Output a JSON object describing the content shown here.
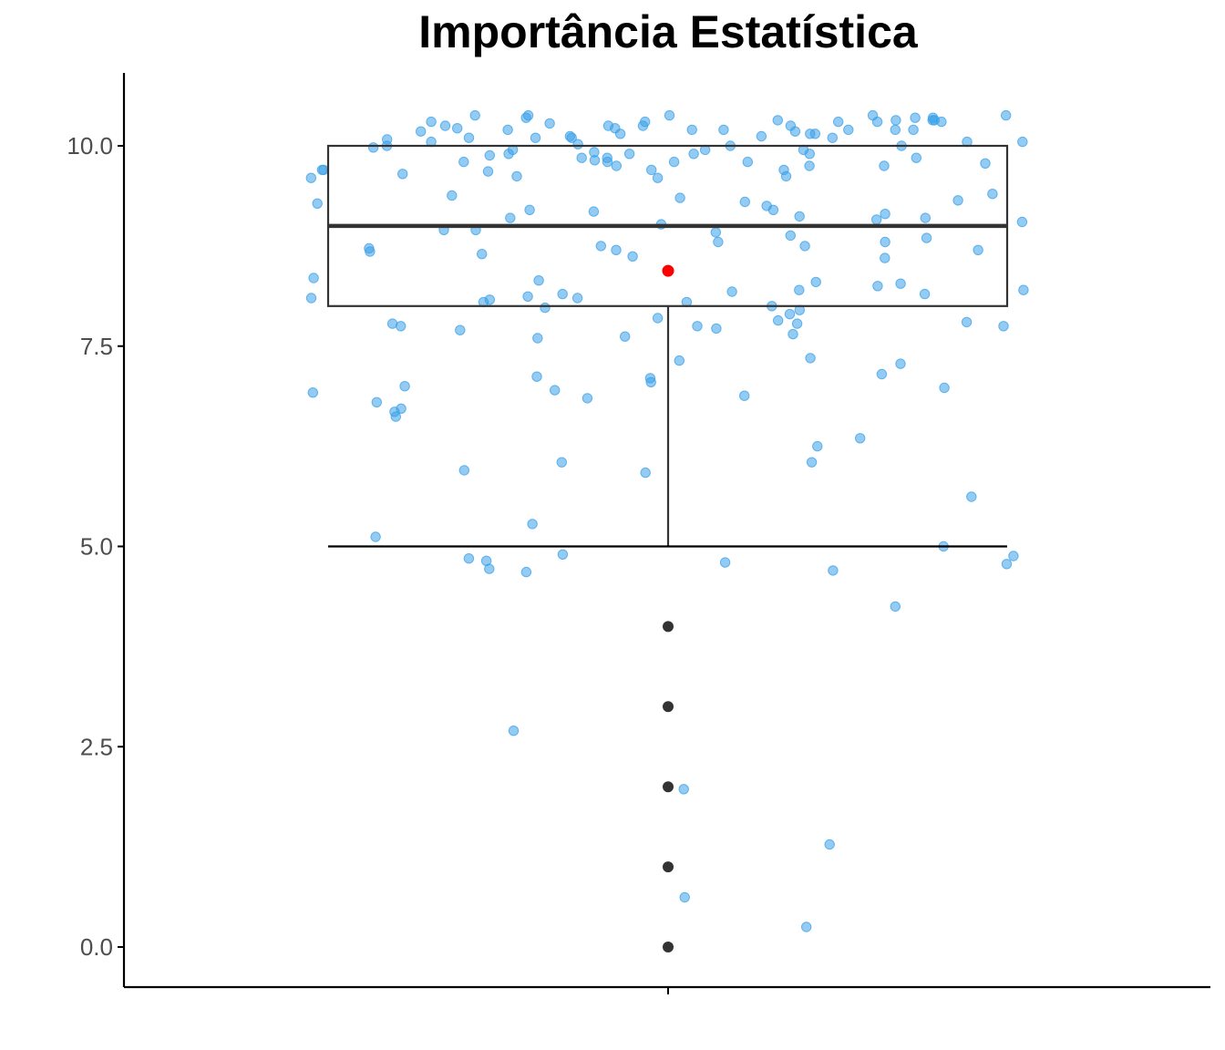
{
  "chart_data": {
    "type": "box",
    "title": "Importância Estatística",
    "xlabel": "",
    "ylabel": "",
    "ylim": [
      -0.5,
      10.9
    ],
    "y_ticks": [
      "0.0",
      "2.5",
      "5.0",
      "7.5",
      "10.0"
    ],
    "y_tick_values": [
      0,
      2.5,
      5,
      7.5,
      10
    ],
    "grid": false,
    "legend": "none",
    "box": {
      "q1": 8,
      "median": 9,
      "q3": 10,
      "whisker_low": 5,
      "whisker_high": 10,
      "mean": 8.44,
      "outliers": [
        4,
        3,
        2,
        1,
        0
      ]
    },
    "jitter_values": [
      10.32,
      10.35,
      10.12,
      10.05,
      10.18,
      10.25,
      10.3,
      10.3,
      10.15,
      10.0,
      10.3,
      10.28,
      10.3,
      10.25,
      10.2,
      10.38,
      10.22,
      10.38,
      10.35,
      10.2,
      10.08,
      10.3,
      10.1,
      10.12,
      10.2,
      10.1,
      10.05,
      10.32,
      10.25,
      10.22,
      10.32,
      10.05,
      10.18,
      10.1,
      10.02,
      10.38,
      10.38,
      10.25,
      10.2,
      10.1,
      10.15,
      10.32,
      10.2,
      10.38,
      10.2,
      10.35,
      10.15,
      10.0,
      10.0,
      9.98,
      9.95,
      9.92,
      9.9,
      9.88,
      9.85,
      9.82,
      9.8,
      9.78,
      9.75,
      9.7,
      9.68,
      9.65,
      9.62,
      9.6,
      9.95,
      9.9,
      9.85,
      9.8,
      9.75,
      9.7,
      9.9,
      9.85,
      9.8,
      9.75,
      9.7,
      9.95,
      9.9,
      9.8,
      9.7,
      9.62,
      9.6,
      9.4,
      9.38,
      9.35,
      9.32,
      9.3,
      9.28,
      9.25,
      9.2,
      9.18,
      9.15,
      9.12,
      9.1,
      9.08,
      9.05,
      9.02,
      8.95,
      8.92,
      8.88,
      8.85,
      8.8,
      8.75,
      8.72,
      8.7,
      8.68,
      8.65,
      8.62,
      8.6,
      9.2,
      9.1,
      8.95,
      8.8,
      8.75,
      8.7,
      8.35,
      8.32,
      8.3,
      8.28,
      8.25,
      8.2,
      8.18,
      8.15,
      8.12,
      8.1,
      8.08,
      8.05,
      8.0,
      7.95,
      7.9,
      7.85,
      7.82,
      7.8,
      7.78,
      7.75,
      7.72,
      7.7,
      7.65,
      7.62,
      7.6,
      8.2,
      8.15,
      8.1,
      8.05,
      7.98,
      7.78,
      7.75,
      7.75,
      7.35,
      7.32,
      7.28,
      7.15,
      7.12,
      7.1,
      7.05,
      7.0,
      6.98,
      6.95,
      6.92,
      6.88,
      6.85,
      6.8,
      6.72,
      6.68,
      6.62,
      6.35,
      6.25,
      6.05,
      6.05,
      5.95,
      5.92,
      5.62,
      5.28,
      5.12,
      5.0,
      4.9,
      4.88,
      4.85,
      4.82,
      4.8,
      4.78,
      4.72,
      4.7,
      4.68,
      4.25,
      2.7,
      1.97,
      1.28,
      0.62,
      0.25
    ],
    "colors": {
      "jitter": "#3aa0e8",
      "box": "#333333",
      "mean": "#ff0000",
      "outlier": "#333333",
      "axis": "#000000"
    }
  }
}
